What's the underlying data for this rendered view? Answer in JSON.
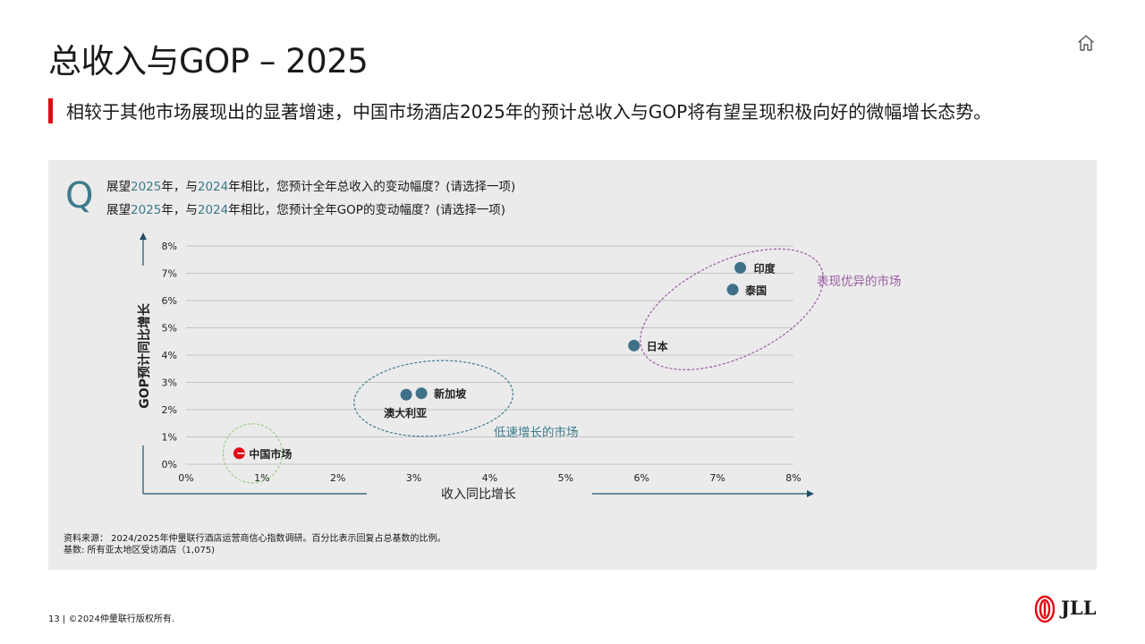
{
  "page": {
    "title": "总收入与GOP – 2025",
    "subtitle": "相较于其他市场展现出的显著增速，中国市场酒店2025年的预计总收入与GOP将有望呈现积极向好的微幅增长态势。",
    "footer": "13 | ©2024仲量联行版权所有.",
    "logo_text": "JLL"
  },
  "question": {
    "mark": "Q",
    "q1": {
      "pre": "展望",
      "year1": "2025",
      "mid": "年，与",
      "year2": "2024",
      "post": "年相比，您预计全年总收入的变动幅度？(请选择一项)"
    },
    "q2": {
      "pre": "展望",
      "year1": "2025",
      "mid": "年，与",
      "year2": "2024",
      "post": "年相比，您预计全年GOP的变动幅度？(请选择一项)"
    }
  },
  "source": {
    "line1": "资料来源：  2024/2025年仲量联行酒店运营商信心指数调研。百分比表示回复占总基数的比例。",
    "line2": "基数: 所有亚太地区受访酒店（1,075)"
  },
  "colors": {
    "accent_red": "#e30613",
    "teal": "#3e7a8c",
    "point_blue": "#3f7189",
    "axis_navy": "#1f4e6b",
    "purple": "#9b5ea3",
    "green": "#9ccc8a"
  },
  "chart_data": {
    "type": "scatter",
    "xlabel": "收入同比增长",
    "ylabel": "GOP预计同比增长",
    "xlim": [
      0,
      8
    ],
    "ylim": [
      0,
      8
    ],
    "x_ticks": [
      "0%",
      "1%",
      "2%",
      "3%",
      "4%",
      "5%",
      "6%",
      "7%",
      "8%"
    ],
    "y_ticks": [
      "0%",
      "1%",
      "2%",
      "3%",
      "4%",
      "5%",
      "6%",
      "7%",
      "8%"
    ],
    "grid": true,
    "points": [
      {
        "label": "中国市场",
        "x": 0.7,
        "y": 0.4,
        "highlight": true
      },
      {
        "label": "澳大利亚",
        "x": 2.9,
        "y": 2.55
      },
      {
        "label": "新加坡",
        "x": 3.1,
        "y": 2.6
      },
      {
        "label": "日本",
        "x": 5.9,
        "y": 4.35
      },
      {
        "label": "泰国",
        "x": 7.2,
        "y": 6.4
      },
      {
        "label": "印度",
        "x": 7.3,
        "y": 7.2
      }
    ],
    "groups": [
      {
        "label": "低速增长的市场",
        "members": [
          "澳大利亚",
          "新加坡"
        ],
        "color": "#3e7a8c"
      },
      {
        "label": "表现优异的市场",
        "members": [
          "日本",
          "泰国",
          "印度"
        ],
        "color": "#9b5ea3"
      },
      {
        "label": "",
        "members": [
          "中国市场"
        ],
        "color": "#9ccc8a"
      }
    ]
  }
}
